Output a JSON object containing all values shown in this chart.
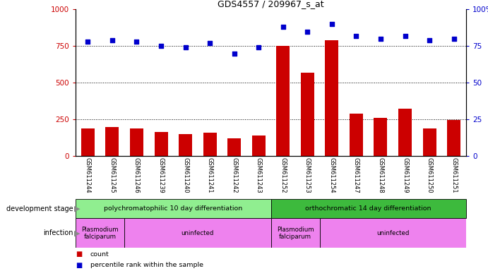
{
  "title": "GDS4557 / 209967_s_at",
  "samples": [
    "GSM611244",
    "GSM611245",
    "GSM611246",
    "GSM611239",
    "GSM611240",
    "GSM611241",
    "GSM611242",
    "GSM611243",
    "GSM611252",
    "GSM611253",
    "GSM611254",
    "GSM611247",
    "GSM611248",
    "GSM611249",
    "GSM611250",
    "GSM611251"
  ],
  "counts": [
    185,
    195,
    185,
    165,
    150,
    160,
    120,
    140,
    750,
    570,
    790,
    290,
    260,
    320,
    185,
    245
  ],
  "percentile": [
    78,
    79,
    78,
    75,
    74,
    77,
    70,
    74,
    88,
    85,
    90,
    82,
    80,
    82,
    79,
    80
  ],
  "ylim_left": [
    0,
    1000
  ],
  "ylim_right": [
    0,
    100
  ],
  "yticks_left": [
    0,
    250,
    500,
    750,
    1000
  ],
  "yticks_right": [
    0,
    25,
    50,
    75,
    100
  ],
  "bar_color": "#cc0000",
  "dot_color": "#0000cc",
  "xticklabel_bg": "#c8c8c8",
  "dev_stage_bg_poly": "#90ee90",
  "dev_stage_bg_ortho": "#3dba3d",
  "infection_bg": "#ee82ee",
  "dev_stage_labels": [
    "polychromatophilic 10 day differentiation",
    "orthochromatic 14 day differentiation"
  ],
  "annotation_dev_stage": "development stage",
  "annotation_infection": "infection",
  "legend_count": "count",
  "legend_percentile": "percentile rank within the sample",
  "n_samples": 16,
  "poly_plasmodium_count": 2,
  "poly_uninfected_count": 6,
  "ortho_plasmodium_count": 2,
  "ortho_uninfected_count": 6,
  "gridline_values": [
    250,
    500,
    750
  ],
  "title_fontsize": 9
}
